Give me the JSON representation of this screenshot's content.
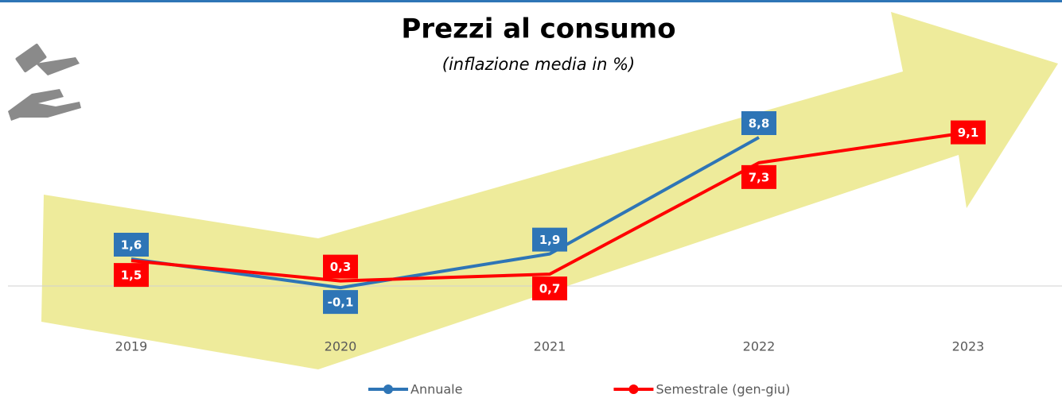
{
  "chart_data": {
    "type": "line",
    "title": "Prezzi al consumo",
    "subtitle": "(inflazione media in %)",
    "categories": [
      "2019",
      "2020",
      "2021",
      "2022",
      "2023"
    ],
    "series": [
      {
        "name": "Annuale",
        "color": "#2e75b6",
        "values": [
          1.6,
          -0.1,
          1.9,
          8.8,
          null
        ],
        "value_labels": [
          "1,6",
          "-0,1",
          "1,9",
          "8,8",
          null
        ]
      },
      {
        "name": "Semestrale (gen-giu)",
        "color": "#ff0000",
        "values": [
          1.5,
          0.3,
          0.7,
          7.3,
          9.1
        ],
        "value_labels": [
          "1,5",
          "0,3",
          "0,7",
          "7,3",
          "9,1"
        ]
      }
    ],
    "ylim": [
      -2,
      10
    ]
  }
}
